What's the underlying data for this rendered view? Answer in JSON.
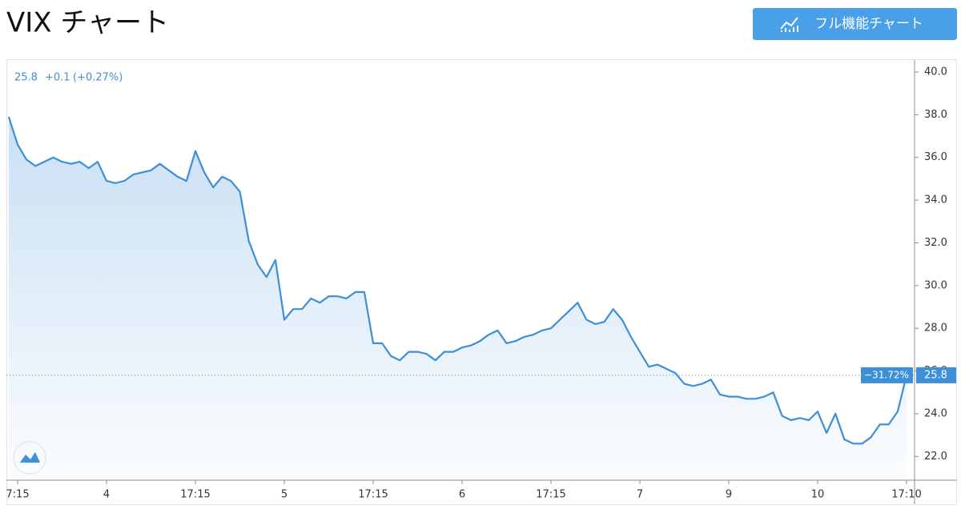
{
  "header": {
    "title": "VIX チャート",
    "button": "フル機能チャート"
  },
  "chart_data": {
    "type": "line",
    "legend": {
      "last": "25.8",
      "change": "+0.1",
      "change_pct": "(+0.27%)"
    },
    "categories": [
      null,
      "7:15",
      null,
      null,
      null,
      null,
      null,
      null,
      null,
      null,
      null,
      "4",
      null,
      null,
      null,
      null,
      null,
      null,
      null,
      null,
      null,
      "17:15",
      null,
      null,
      null,
      null,
      null,
      null,
      null,
      null,
      null,
      "5",
      null,
      null,
      null,
      null,
      null,
      null,
      null,
      null,
      null,
      "17:15",
      null,
      null,
      null,
      null,
      null,
      null,
      null,
      null,
      null,
      "6",
      null,
      null,
      null,
      null,
      null,
      null,
      null,
      null,
      null,
      "17:15",
      null,
      null,
      null,
      null,
      null,
      null,
      null,
      null,
      null,
      "7",
      null,
      null,
      null,
      null,
      null,
      null,
      null,
      null,
      null,
      "9",
      null,
      null,
      null,
      null,
      null,
      null,
      null,
      null,
      null,
      "10",
      null,
      null,
      null,
      null,
      null,
      null,
      null,
      null,
      null,
      "17:10"
    ],
    "values": [
      37.9,
      36.6,
      35.9,
      35.6,
      35.8,
      36.0,
      35.8,
      35.7,
      35.8,
      35.5,
      35.8,
      34.9,
      34.8,
      34.9,
      35.2,
      35.3,
      35.4,
      35.7,
      35.4,
      35.1,
      34.9,
      36.3,
      35.3,
      34.6,
      35.1,
      34.9,
      34.4,
      32.1,
      31.0,
      30.4,
      31.2,
      28.4,
      28.9,
      28.9,
      29.4,
      29.2,
      29.5,
      29.5,
      29.4,
      29.7,
      29.7,
      27.3,
      27.3,
      26.7,
      26.5,
      26.9,
      26.9,
      26.8,
      26.5,
      26.9,
      26.9,
      27.1,
      27.2,
      27.4,
      27.7,
      27.9,
      27.3,
      27.4,
      27.6,
      27.7,
      27.9,
      28.0,
      28.4,
      28.8,
      29.2,
      28.4,
      28.2,
      28.3,
      28.9,
      28.4,
      27.6,
      26.9,
      26.2,
      26.3,
      26.1,
      25.9,
      25.4,
      25.3,
      25.4,
      25.6,
      24.9,
      24.8,
      24.8,
      24.7,
      24.7,
      24.8,
      25.0,
      23.9,
      23.7,
      23.8,
      23.7,
      24.1,
      23.1,
      24.0,
      22.8,
      22.6,
      22.6,
      22.9,
      23.5,
      23.5,
      24.1,
      25.8
    ],
    "color": "#3d8fd6",
    "last_label": "25.8",
    "change_label": "−31.72%",
    "ylim": [
      21,
      40.6
    ],
    "yticks": [
      {
        "value": 22,
        "label": "22.0"
      },
      {
        "value": 24,
        "label": "24.0"
      },
      {
        "value": 26,
        "label": "26.0"
      },
      {
        "value": 28,
        "label": "28.0"
      },
      {
        "value": 30,
        "label": "30.0"
      },
      {
        "value": 32,
        "label": "32.0"
      },
      {
        "value": 34,
        "label": "34.0"
      },
      {
        "value": 36,
        "label": "36.0"
      },
      {
        "value": 38,
        "label": "38.0"
      },
      {
        "value": 40,
        "label": "40.0"
      }
    ]
  }
}
